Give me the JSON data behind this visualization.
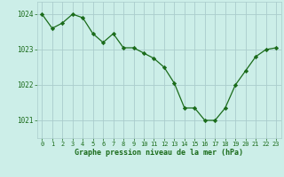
{
  "x": [
    0,
    1,
    2,
    3,
    4,
    5,
    6,
    7,
    8,
    9,
    10,
    11,
    12,
    13,
    14,
    15,
    16,
    17,
    18,
    19,
    20,
    21,
    22,
    23
  ],
  "y": [
    1024.0,
    1023.6,
    1023.75,
    1024.0,
    1023.9,
    1023.45,
    1023.2,
    1023.45,
    1023.05,
    1023.05,
    1022.9,
    1022.75,
    1022.5,
    1022.05,
    1021.35,
    1021.35,
    1021.0,
    1021.0,
    1021.35,
    1022.0,
    1022.4,
    1022.8,
    1023.0,
    1023.05
  ],
  "line_color": "#1a6b1a",
  "marker": "D",
  "marker_size": 2.2,
  "bg_color": "#cceee8",
  "grid_color": "#aacccc",
  "xlabel": "Graphe pression niveau de la mer (hPa)",
  "xlabel_color": "#1a6b1a",
  "tick_label_color": "#1a6b1a",
  "ylim": [
    1020.5,
    1024.35
  ],
  "yticks": [
    1021,
    1022,
    1023,
    1024
  ],
  "xlim": [
    -0.5,
    23.5
  ],
  "xticks": [
    0,
    1,
    2,
    3,
    4,
    5,
    6,
    7,
    8,
    9,
    10,
    11,
    12,
    13,
    14,
    15,
    16,
    17,
    18,
    19,
    20,
    21,
    22,
    23
  ]
}
